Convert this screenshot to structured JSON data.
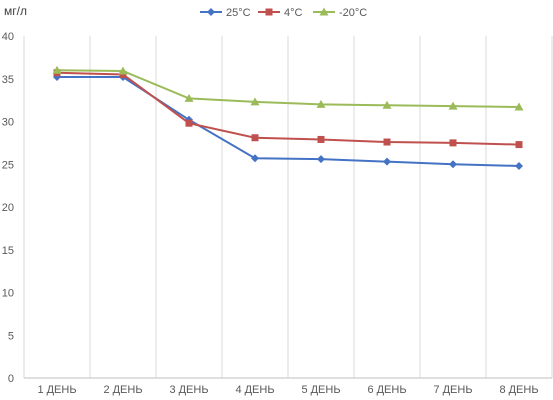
{
  "chart_data": {
    "type": "line",
    "title": "",
    "ylabel": "мг/л",
    "xlabel": "",
    "categories": [
      "1 ДЕНЬ",
      "2 ДЕНЬ",
      "3 ДЕНЬ",
      "4 ДЕНЬ",
      "5 ДЕНЬ",
      "6 ДЕНЬ",
      "7 ДЕНЬ",
      "8 ДЕНЬ"
    ],
    "ylim": [
      0,
      40
    ],
    "yticks": [
      "0",
      "5",
      "10",
      "15",
      "20",
      "25",
      "30",
      "35",
      "40"
    ],
    "grid": "vertical",
    "legend_position": "top",
    "series": [
      {
        "name": "25°C",
        "color": "#4472C4",
        "marker": "diamond",
        "values": [
          35.2,
          35.2,
          30.2,
          25.7,
          25.6,
          25.3,
          25.0,
          24.8
        ]
      },
      {
        "name": "4°C",
        "color": "#C0504D",
        "marker": "square",
        "values": [
          35.7,
          35.5,
          29.8,
          28.1,
          27.9,
          27.6,
          27.5,
          27.3
        ]
      },
      {
        "name": "-20°C",
        "color": "#9BBB59",
        "marker": "triangle",
        "values": [
          36.0,
          35.9,
          32.7,
          32.3,
          32.0,
          31.9,
          31.8,
          31.7
        ]
      }
    ]
  }
}
